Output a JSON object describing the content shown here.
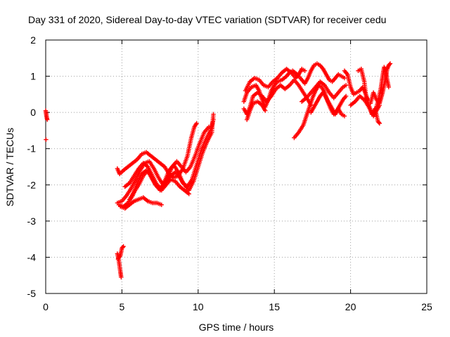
{
  "chart_data": {
    "type": "scatter",
    "title": "Day 331 of 2020, Sidereal Day-to-day VTEC variation (SDTVAR) for receiver cedu",
    "xlabel": "GPS time / hours",
    "ylabel": "SDTVAR / TECUs",
    "xlim": [
      0,
      25
    ],
    "ylim": [
      -5,
      2
    ],
    "xticks": [
      "0",
      "5",
      "10",
      "15",
      "20",
      "25"
    ],
    "yticks": [
      "-5",
      "-4",
      "-3",
      "-2",
      "-1",
      "0",
      "1",
      "2"
    ],
    "grid": true,
    "marker": "plus",
    "color": "#ff0000",
    "segments": [
      [
        [
          0.0,
          0.05
        ],
        [
          0.05,
          -0.1
        ],
        [
          0.1,
          -0.2
        ]
      ],
      [
        [
          0.02,
          -0.75
        ]
      ],
      [
        [
          4.7,
          -3.9
        ],
        [
          4.8,
          -4.1
        ],
        [
          4.9,
          -4.4
        ],
        [
          4.95,
          -4.55
        ]
      ],
      [
        [
          4.75,
          -4.05
        ],
        [
          4.9,
          -3.95
        ],
        [
          5.0,
          -3.75
        ],
        [
          5.1,
          -3.7
        ]
      ],
      [
        [
          4.7,
          -1.55
        ],
        [
          4.85,
          -1.7
        ],
        [
          5.1,
          -1.6
        ],
        [
          5.4,
          -1.5
        ],
        [
          5.7,
          -1.4
        ],
        [
          6.0,
          -1.3
        ],
        [
          6.3,
          -1.15
        ],
        [
          6.6,
          -1.1
        ],
        [
          6.9,
          -1.2
        ],
        [
          7.2,
          -1.3
        ],
        [
          7.5,
          -1.4
        ],
        [
          7.8,
          -1.5
        ],
        [
          8.1,
          -1.7
        ],
        [
          8.4,
          -1.8
        ],
        [
          8.7,
          -1.75
        ],
        [
          9.0,
          -1.55
        ],
        [
          9.3,
          -1.2
        ],
        [
          9.55,
          -0.7
        ],
        [
          9.75,
          -0.4
        ],
        [
          9.9,
          -0.3
        ]
      ],
      [
        [
          4.7,
          -2.5
        ],
        [
          5.0,
          -2.45
        ],
        [
          5.3,
          -2.3
        ],
        [
          5.6,
          -2.1
        ],
        [
          5.9,
          -1.85
        ],
        [
          6.2,
          -1.6
        ],
        [
          6.5,
          -1.4
        ],
        [
          6.8,
          -1.35
        ],
        [
          7.1,
          -1.55
        ],
        [
          7.4,
          -1.8
        ],
        [
          7.7,
          -2.0
        ],
        [
          8.0,
          -1.8
        ],
        [
          8.3,
          -1.5
        ],
        [
          8.6,
          -1.35
        ],
        [
          8.9,
          -1.5
        ],
        [
          9.2,
          -1.65
        ],
        [
          9.5,
          -1.5
        ],
        [
          9.8,
          -1.2
        ],
        [
          10.1,
          -0.85
        ],
        [
          10.4,
          -0.55
        ],
        [
          10.7,
          -0.4
        ]
      ],
      [
        [
          4.8,
          -2.55
        ],
        [
          5.1,
          -2.6
        ],
        [
          5.4,
          -2.5
        ],
        [
          5.7,
          -2.3
        ],
        [
          6.0,
          -1.95
        ],
        [
          6.3,
          -1.7
        ],
        [
          6.6,
          -1.6
        ],
        [
          6.9,
          -1.75
        ],
        [
          7.2,
          -2.0
        ],
        [
          7.5,
          -2.15
        ],
        [
          7.8,
          -1.9
        ],
        [
          8.1,
          -1.6
        ],
        [
          8.4,
          -1.45
        ],
        [
          8.7,
          -1.65
        ],
        [
          9.0,
          -1.95
        ],
        [
          9.3,
          -2.05
        ],
        [
          9.6,
          -1.85
        ],
        [
          9.9,
          -1.45
        ],
        [
          10.2,
          -1.05
        ],
        [
          10.5,
          -0.75
        ],
        [
          10.8,
          -0.5
        ],
        [
          11.0,
          -0.2
        ]
      ],
      [
        [
          4.9,
          -2.6
        ],
        [
          5.2,
          -2.65
        ],
        [
          5.5,
          -2.55
        ],
        [
          5.8,
          -2.45
        ],
        [
          6.1,
          -2.4
        ],
        [
          6.4,
          -2.35
        ],
        [
          6.7,
          -2.45
        ],
        [
          7.0,
          -2.5
        ],
        [
          7.3,
          -2.5
        ],
        [
          7.6,
          -2.55
        ]
      ],
      [
        [
          5.2,
          -2.05
        ],
        [
          5.5,
          -1.95
        ],
        [
          5.8,
          -1.75
        ],
        [
          6.1,
          -1.55
        ],
        [
          6.4,
          -1.4
        ],
        [
          6.7,
          -1.5
        ],
        [
          7.0,
          -1.75
        ],
        [
          7.3,
          -2.0
        ],
        [
          7.6,
          -2.1
        ],
        [
          7.9,
          -1.95
        ],
        [
          8.2,
          -1.75
        ],
        [
          8.5,
          -1.65
        ],
        [
          8.8,
          -1.8
        ],
        [
          9.1,
          -2.0
        ],
        [
          9.4,
          -2.15
        ],
        [
          9.7,
          -1.9
        ],
        [
          10.0,
          -1.5
        ],
        [
          10.3,
          -1.1
        ],
        [
          10.6,
          -0.8
        ],
        [
          10.9,
          -0.55
        ],
        [
          11.0,
          -0.05
        ]
      ],
      [
        [
          5.5,
          -2.4
        ],
        [
          5.8,
          -2.2
        ],
        [
          6.1,
          -2.0
        ],
        [
          6.4,
          -1.75
        ],
        [
          6.7,
          -1.6
        ],
        [
          7.0,
          -1.85
        ],
        [
          7.3,
          -2.05
        ],
        [
          7.6,
          -2.15
        ],
        [
          7.9,
          -2.0
        ],
        [
          8.2,
          -1.85
        ],
        [
          8.5,
          -1.9
        ],
        [
          8.8,
          -2.05
        ],
        [
          9.1,
          -2.15
        ],
        [
          9.4,
          -2.25
        ]
      ],
      [
        [
          13.0,
          0.3
        ],
        [
          13.2,
          0.55
        ],
        [
          13.5,
          0.7
        ],
        [
          13.8,
          0.75
        ],
        [
          14.0,
          0.6
        ],
        [
          14.2,
          0.35
        ],
        [
          14.4,
          0.15
        ],
        [
          14.6,
          0.35
        ],
        [
          14.8,
          0.6
        ],
        [
          15.0,
          0.75
        ],
        [
          15.2,
          0.85
        ],
        [
          15.5,
          0.9
        ],
        [
          15.8,
          1.0
        ],
        [
          16.0,
          1.1
        ],
        [
          16.2,
          1.15
        ],
        [
          16.5,
          1.05
        ],
        [
          16.8,
          0.9
        ],
        [
          17.0,
          0.8
        ],
        [
          17.2,
          0.95
        ],
        [
          17.4,
          1.15
        ],
        [
          17.6,
          1.3
        ],
        [
          17.8,
          1.35
        ],
        [
          18.0,
          1.3
        ],
        [
          18.2,
          1.2
        ],
        [
          18.4,
          1.05
        ],
        [
          18.6,
          0.9
        ],
        [
          18.8,
          0.85
        ],
        [
          19.0,
          0.95
        ],
        [
          19.2,
          1.05
        ],
        [
          19.4,
          1.0
        ],
        [
          19.6,
          0.95
        ]
      ],
      [
        [
          13.1,
          0.6
        ],
        [
          13.4,
          0.85
        ],
        [
          13.7,
          0.95
        ],
        [
          14.0,
          0.9
        ],
        [
          14.3,
          0.75
        ],
        [
          14.6,
          0.7
        ],
        [
          14.9,
          0.85
        ],
        [
          15.2,
          0.95
        ],
        [
          15.5,
          1.1
        ],
        [
          15.8,
          1.2
        ],
        [
          16.1,
          1.1
        ],
        [
          16.4,
          0.95
        ],
        [
          16.6,
          1.05
        ],
        [
          16.8,
          1.2
        ],
        [
          17.0,
          1.15
        ]
      ],
      [
        [
          13.0,
          0.1
        ],
        [
          13.2,
          -0.05
        ],
        [
          13.4,
          0.15
        ],
        [
          13.6,
          0.45
        ],
        [
          13.9,
          0.55
        ],
        [
          14.2,
          0.45
        ],
        [
          14.5,
          0.3
        ],
        [
          14.8,
          0.45
        ],
        [
          15.1,
          0.65
        ],
        [
          15.4,
          0.75
        ],
        [
          15.7,
          0.65
        ],
        [
          16.0,
          0.75
        ],
        [
          16.3,
          0.9
        ],
        [
          16.6,
          0.75
        ],
        [
          16.9,
          0.55
        ],
        [
          17.2,
          0.35
        ],
        [
          17.4,
          0.2
        ]
      ],
      [
        [
          13.2,
          -0.2
        ],
        [
          13.4,
          0.05
        ],
        [
          13.6,
          0.25
        ],
        [
          13.9,
          0.3
        ],
        [
          14.2,
          0.2
        ],
        [
          14.4,
          0.05
        ]
      ],
      [
        [
          16.3,
          -0.7
        ],
        [
          16.6,
          -0.55
        ],
        [
          16.9,
          -0.35
        ],
        [
          17.1,
          -0.1
        ],
        [
          17.3,
          0.15
        ],
        [
          17.5,
          0.4
        ],
        [
          17.7,
          0.6
        ],
        [
          17.9,
          0.75
        ],
        [
          18.1,
          0.7
        ],
        [
          18.3,
          0.55
        ],
        [
          18.5,
          0.3
        ],
        [
          18.7,
          0.1
        ],
        [
          18.9,
          -0.05
        ],
        [
          19.1,
          0.05
        ],
        [
          19.3,
          0.2
        ],
        [
          19.5,
          0.35
        ],
        [
          19.7,
          0.45
        ]
      ],
      [
        [
          16.8,
          0.3
        ],
        [
          17.1,
          0.4
        ],
        [
          17.4,
          0.55
        ],
        [
          17.7,
          0.7
        ],
        [
          18.0,
          0.85
        ],
        [
          18.3,
          0.75
        ],
        [
          18.6,
          0.55
        ],
        [
          18.9,
          0.4
        ],
        [
          19.2,
          0.55
        ],
        [
          19.5,
          0.7
        ],
        [
          19.7,
          0.75
        ]
      ],
      [
        [
          17.4,
          0.0
        ],
        [
          17.6,
          0.15
        ],
        [
          17.8,
          0.3
        ],
        [
          18.0,
          0.45
        ],
        [
          18.2,
          0.55
        ],
        [
          18.4,
          0.4
        ],
        [
          18.6,
          0.25
        ],
        [
          18.8,
          0.1
        ],
        [
          19.0,
          -0.05
        ],
        [
          19.2,
          0.1
        ],
        [
          19.4,
          -0.05
        ],
        [
          19.6,
          -0.1
        ]
      ],
      [
        [
          19.6,
          1.15
        ],
        [
          19.8,
          1.05
        ],
        [
          20.0,
          0.7
        ],
        [
          20.2,
          0.5
        ],
        [
          20.4,
          0.55
        ],
        [
          20.6,
          0.6
        ],
        [
          20.8,
          0.7
        ],
        [
          21.0,
          0.5
        ],
        [
          21.2,
          0.2
        ],
        [
          21.4,
          -0.05
        ],
        [
          21.6,
          0.1
        ],
        [
          21.8,
          -0.25
        ],
        [
          21.9,
          -0.3
        ]
      ],
      [
        [
          20.0,
          0.2
        ],
        [
          20.3,
          0.3
        ],
        [
          20.6,
          0.45
        ],
        [
          20.9,
          0.35
        ],
        [
          21.2,
          0.15
        ],
        [
          21.5,
          -0.1
        ],
        [
          21.7,
          0.05
        ],
        [
          21.9,
          0.2
        ]
      ],
      [
        [
          20.5,
          1.15
        ],
        [
          20.7,
          1.2
        ],
        [
          20.9,
          0.85
        ],
        [
          21.0,
          0.5
        ],
        [
          21.1,
          0.35
        ]
      ],
      [
        [
          21.3,
          0.25
        ],
        [
          21.5,
          0.55
        ],
        [
          21.7,
          0.35
        ],
        [
          21.9,
          0.25
        ],
        [
          22.0,
          0.4
        ],
        [
          22.1,
          0.55
        ],
        [
          22.2,
          0.75
        ],
        [
          22.3,
          0.95
        ],
        [
          22.4,
          1.2
        ],
        [
          22.5,
          1.3
        ],
        [
          22.6,
          1.35
        ]
      ],
      [
        [
          21.6,
          0.0
        ],
        [
          21.8,
          0.3
        ],
        [
          22.0,
          0.7
        ],
        [
          22.1,
          1.0
        ],
        [
          22.2,
          1.25
        ],
        [
          22.3,
          1.15
        ],
        [
          22.4,
          0.9
        ],
        [
          22.5,
          0.7
        ]
      ]
    ]
  }
}
